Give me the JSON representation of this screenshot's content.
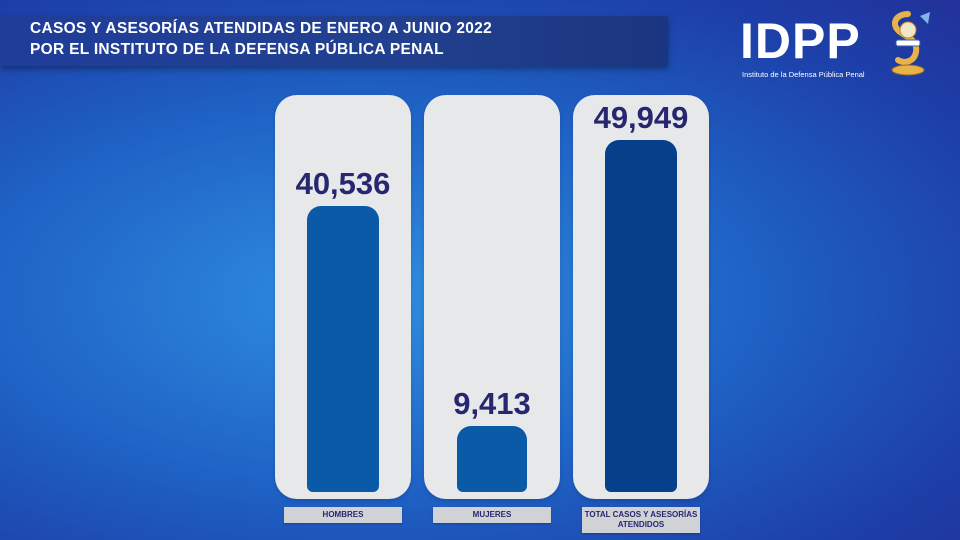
{
  "header": {
    "title_line1": "CASOS Y ASESORÍAS ATENDIDAS DE ENERO A JUNIO 2022",
    "title_line2": "POR EL INSTITUTO DE LA DEFENSA PÚBLICA PENAL"
  },
  "logo": {
    "text": "IDPP",
    "subtitle": "Instituto de la Defensa Pública Penal"
  },
  "colors": {
    "background": "#1f63c6",
    "panel": "#e7e8ea",
    "bar_primary": "#0a5aa8",
    "bar_total": "#063f8a",
    "value_text": "#27276f"
  },
  "chart_data": {
    "type": "bar",
    "categories": [
      "HOMBRES",
      "MUJERES",
      "TOTAL CASOS Y ASESORÍAS ATENDIDOS"
    ],
    "values": [
      40536,
      9413,
      49949
    ],
    "value_labels": [
      "40,536",
      "9,413",
      "49,949"
    ],
    "title": "CASOS Y ASESORÍAS ATENDIDAS DE ENERO A JUNIO 2022 POR EL INSTITUTO DE LA DEFENSA PÚBLICA PENAL",
    "ylim": [
      0,
      49949
    ],
    "grid": false
  }
}
